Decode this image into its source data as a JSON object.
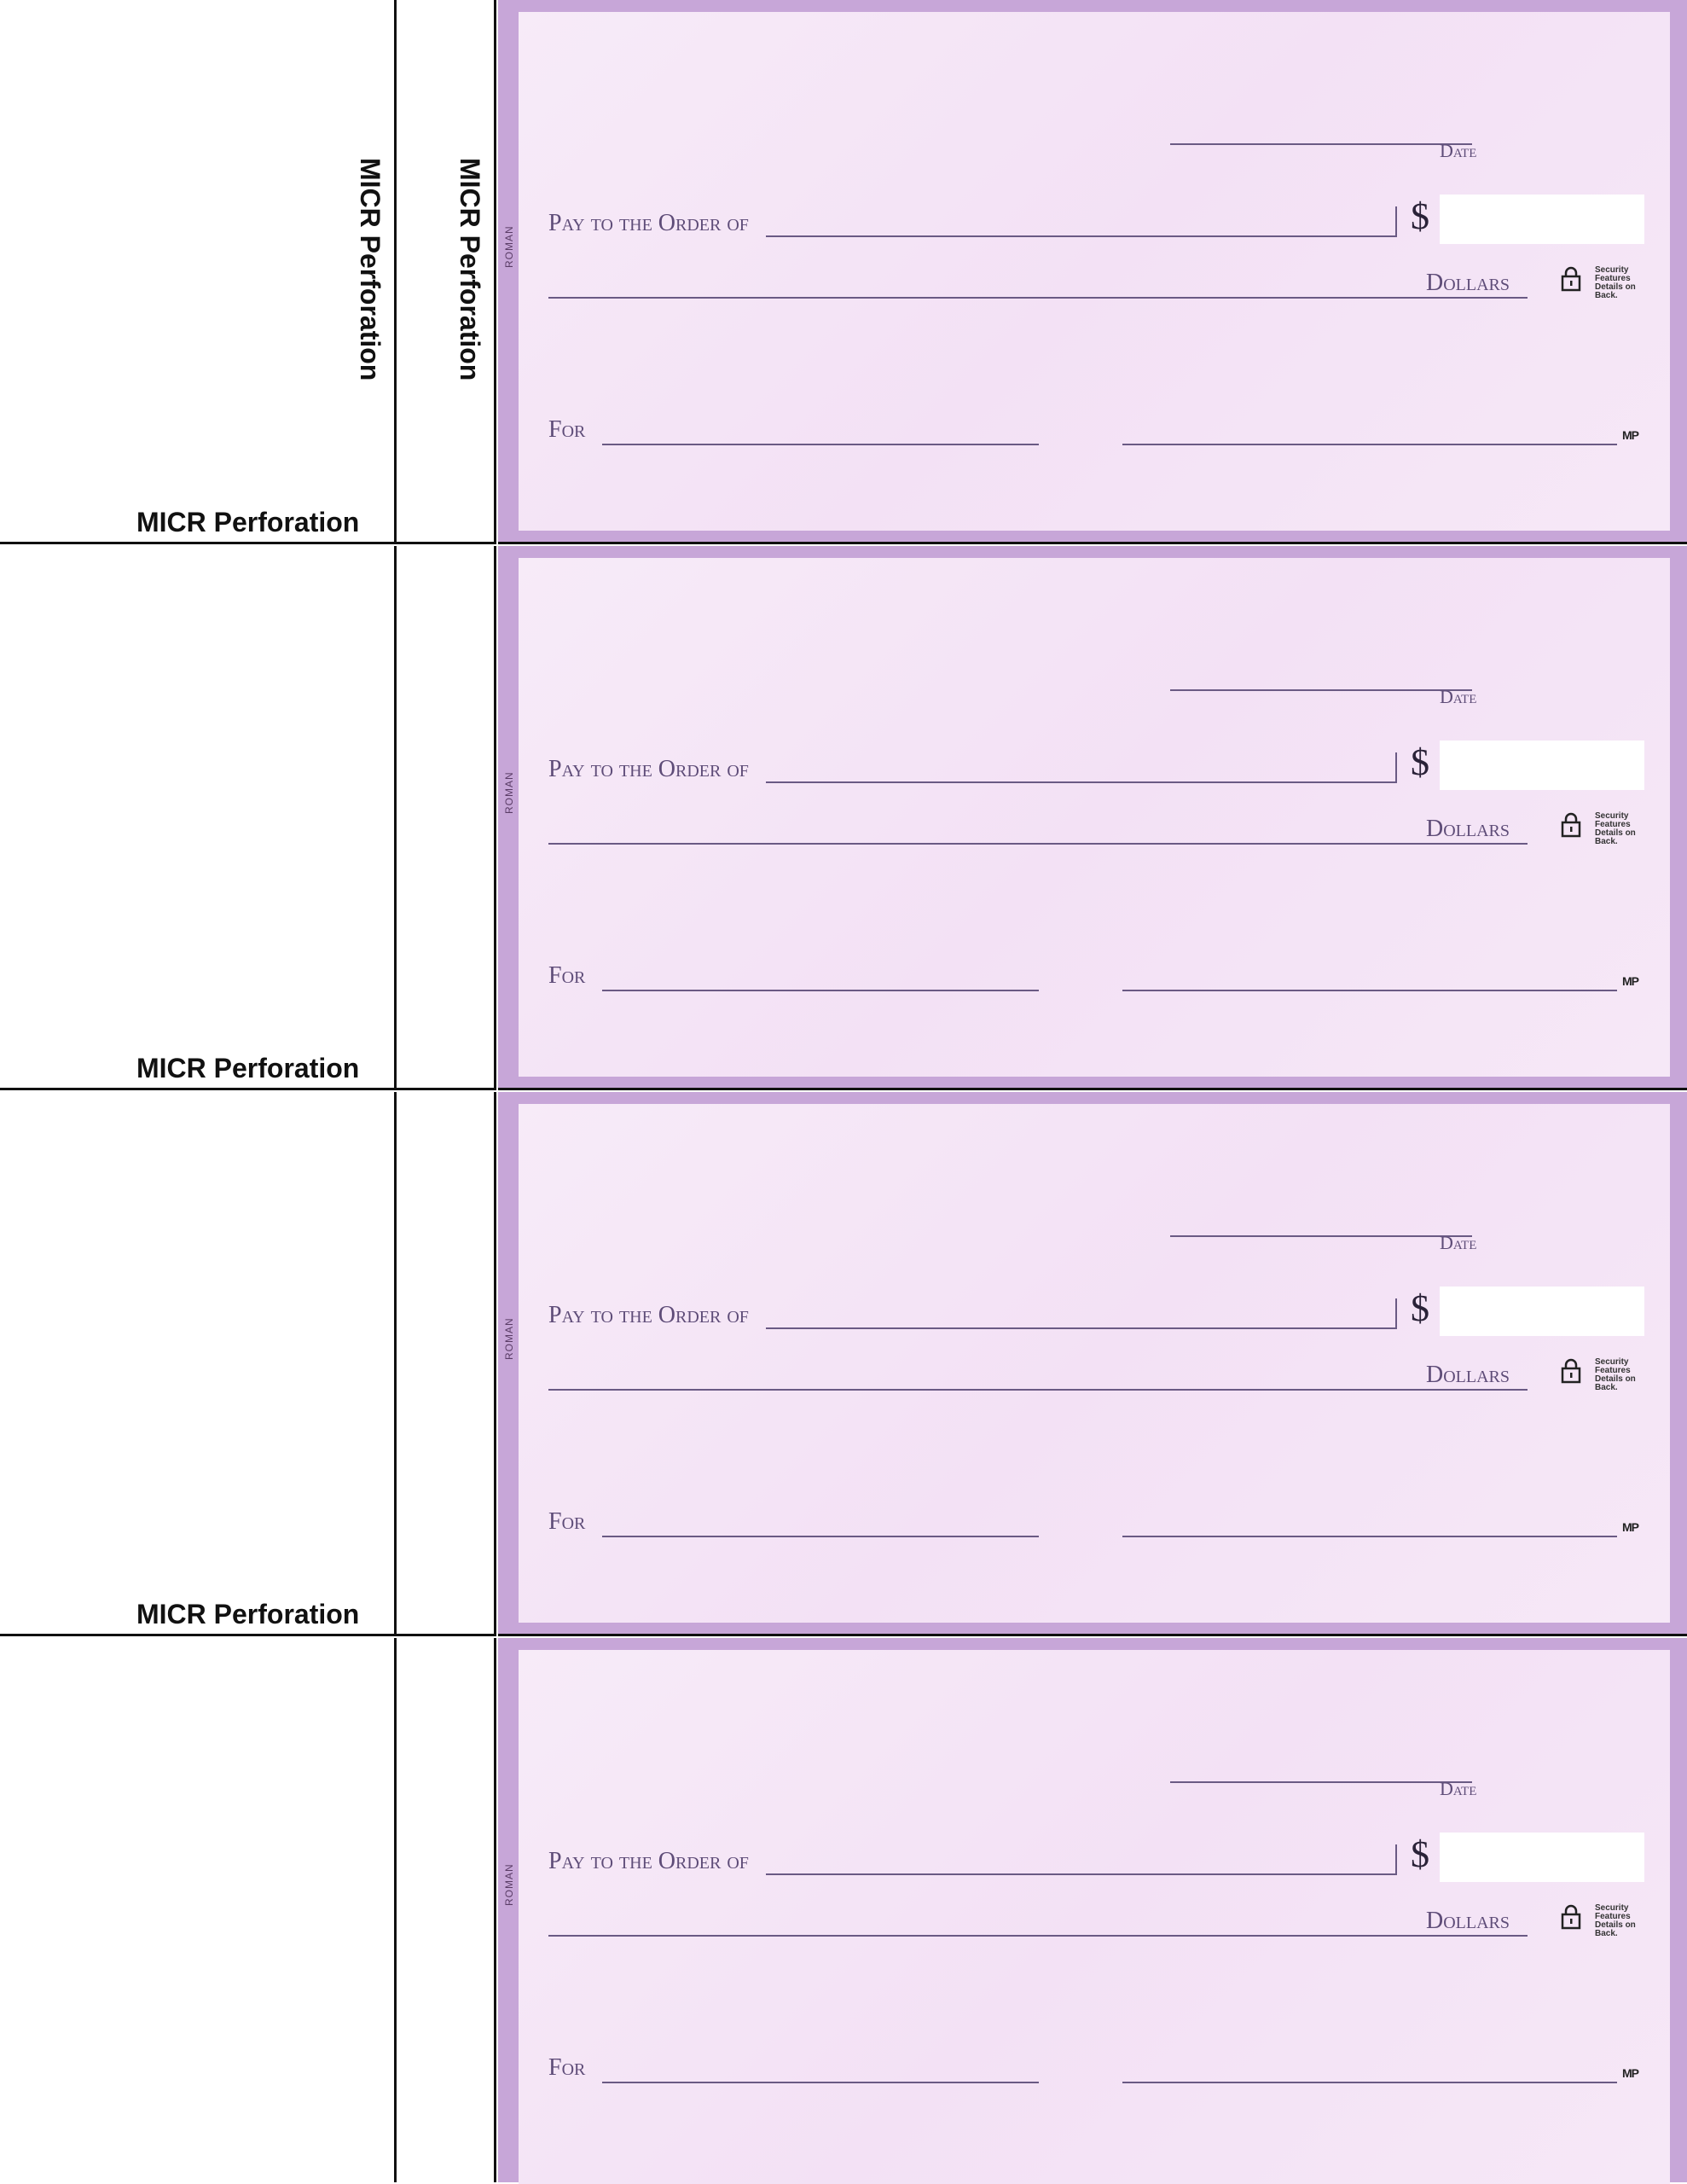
{
  "perforation_label": "MICR Perforation",
  "checks": [
    {
      "roman": "ROMAN",
      "date_label": "Date",
      "pay_to_label": "Pay to the Order of",
      "dollar_sign": "$",
      "dollars_label": "Dollars",
      "security_text": "Security Features Details on Back.",
      "for_label": "For",
      "mp_mark": "MP"
    },
    {
      "roman": "ROMAN",
      "date_label": "Date",
      "pay_to_label": "Pay to the Order of",
      "dollar_sign": "$",
      "dollars_label": "Dollars",
      "security_text": "Security Features Details on Back.",
      "for_label": "For",
      "mp_mark": "MP"
    },
    {
      "roman": "ROMAN",
      "date_label": "Date",
      "pay_to_label": "Pay to the Order of",
      "dollar_sign": "$",
      "dollars_label": "Dollars",
      "security_text": "Security Features Details on Back.",
      "for_label": "For",
      "mp_mark": "MP"
    },
    {
      "roman": "ROMAN",
      "date_label": "Date",
      "pay_to_label": "Pay to the Order of",
      "dollar_sign": "$",
      "dollars_label": "Dollars",
      "security_text": "Security Features Details on Back.",
      "for_label": "For",
      "mp_mark": "MP"
    }
  ],
  "colors": {
    "check_border": "#c7a6d8",
    "check_face": "#f5e6f6",
    "ink": "#5e4c78"
  }
}
